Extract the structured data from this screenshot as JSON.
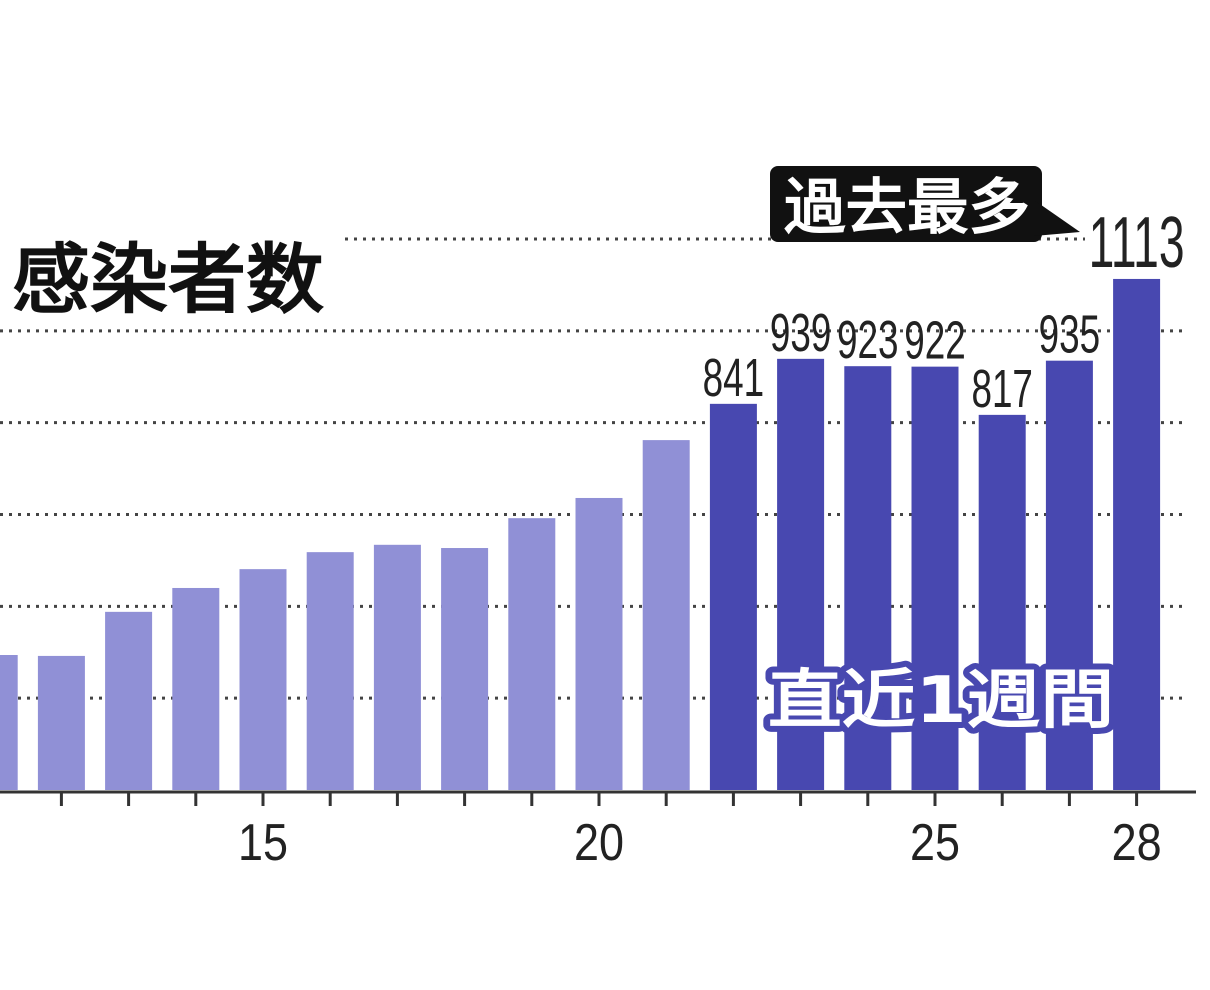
{
  "chart_data": {
    "type": "bar",
    "title": "感染者数",
    "x": [
      11,
      12,
      13,
      14,
      15,
      16,
      17,
      18,
      19,
      20,
      21,
      22,
      23,
      24,
      25,
      26,
      27,
      28
    ],
    "values": [
      294,
      292,
      388,
      440,
      481,
      518,
      534,
      527,
      592,
      636,
      762,
      841,
      939,
      923,
      922,
      817,
      935,
      1113
    ],
    "data_labels": [
      null,
      null,
      null,
      null,
      null,
      null,
      null,
      null,
      null,
      null,
      null,
      841,
      939,
      923,
      922,
      817,
      935,
      1113
    ],
    "x_ticks": [
      15,
      20,
      25,
      28
    ],
    "ylim": [
      0,
      1200
    ],
    "gridlines": [
      200,
      400,
      600,
      800,
      1000,
      1200
    ],
    "grid": true,
    "colors": {
      "bar": "#9090d6",
      "highlight_bar": "#4848b0",
      "text": "#222222",
      "annotation_bg": "#111111"
    },
    "highlight": {
      "label": "直近1週間",
      "x_range": [
        22,
        28
      ]
    },
    "annotation": {
      "text": "過去最多",
      "x": 28
    }
  }
}
